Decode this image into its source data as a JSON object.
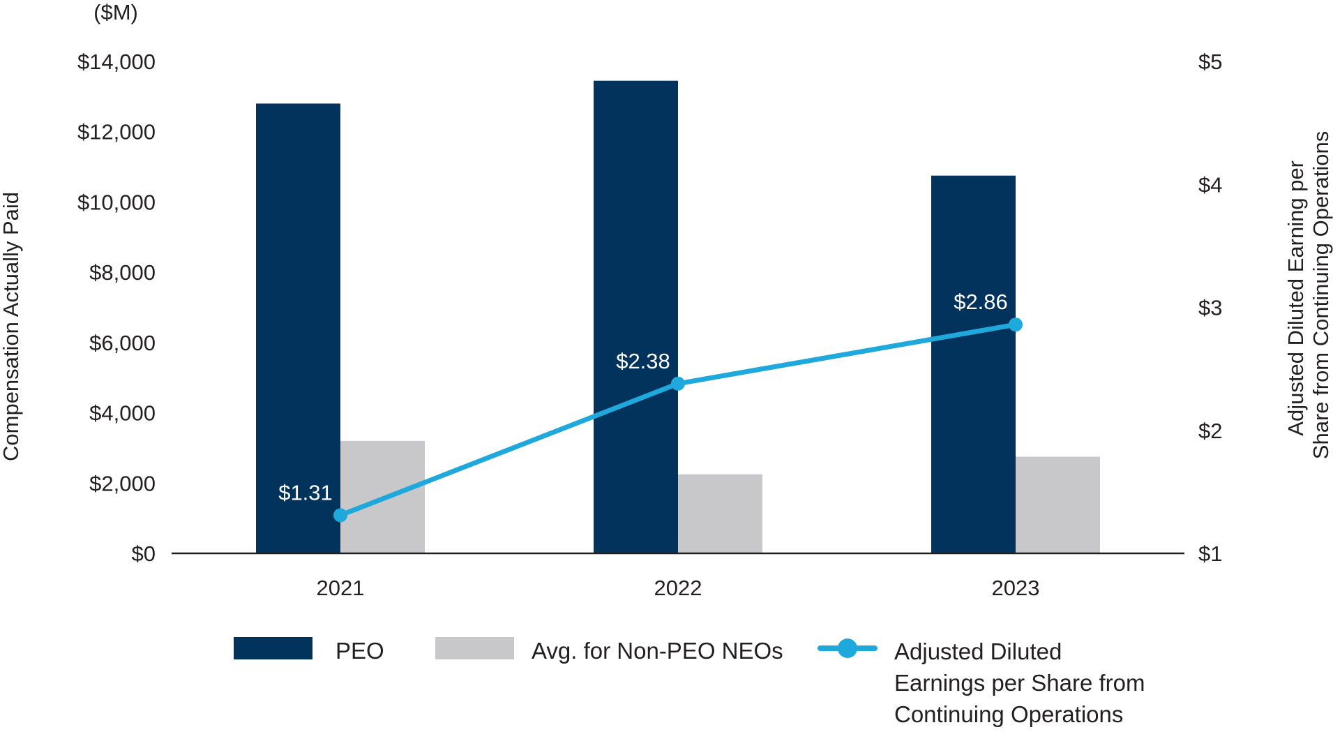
{
  "chart_data": {
    "type": "bar",
    "categories": [
      "2021",
      "2022",
      "2023"
    ],
    "units_label": "($M)",
    "ylabel": "Compensation Actually Paid",
    "y2label": "Adjusted Diluted Earning per Share from Continuing Operations",
    "ylim": [
      0,
      14000
    ],
    "y2lim": [
      1,
      5
    ],
    "yticks": [
      "$0",
      "$2,000",
      "$4,000",
      "$6,000",
      "$8,000",
      "$10,000",
      "$12,000",
      "$14,000"
    ],
    "y2ticks": [
      "$1",
      "$2",
      "$3",
      "$4",
      "$5"
    ],
    "series": [
      {
        "name": "PEO",
        "type": "bar",
        "axis": "left",
        "color": "#02335c",
        "values": [
          12800,
          13450,
          10750
        ]
      },
      {
        "name": "Avg. for Non-PEO NEOs",
        "type": "bar",
        "axis": "left",
        "color": "#c8c8ca",
        "values": [
          3200,
          2250,
          2750
        ]
      },
      {
        "name": "Adjusted Diluted Earnings per Share from Continuing Operations",
        "type": "line",
        "axis": "right",
        "color": "#1ea8dc",
        "values": [
          1.31,
          2.38,
          2.86
        ],
        "labels": [
          "$1.31",
          "$2.38",
          "$2.86"
        ]
      }
    ],
    "legend": {
      "placement": "bottom",
      "items": [
        {
          "label": "PEO",
          "color": "#02335c",
          "kind": "bar"
        },
        {
          "label": "Avg. for Non-PEO NEOs",
          "color": "#c8c8ca",
          "kind": "bar"
        },
        {
          "label_lines": [
            "Adjusted Diluted",
            "Earnings per Share from",
            "Continuing Operations"
          ],
          "color": "#1ea8dc",
          "kind": "line"
        }
      ]
    }
  }
}
